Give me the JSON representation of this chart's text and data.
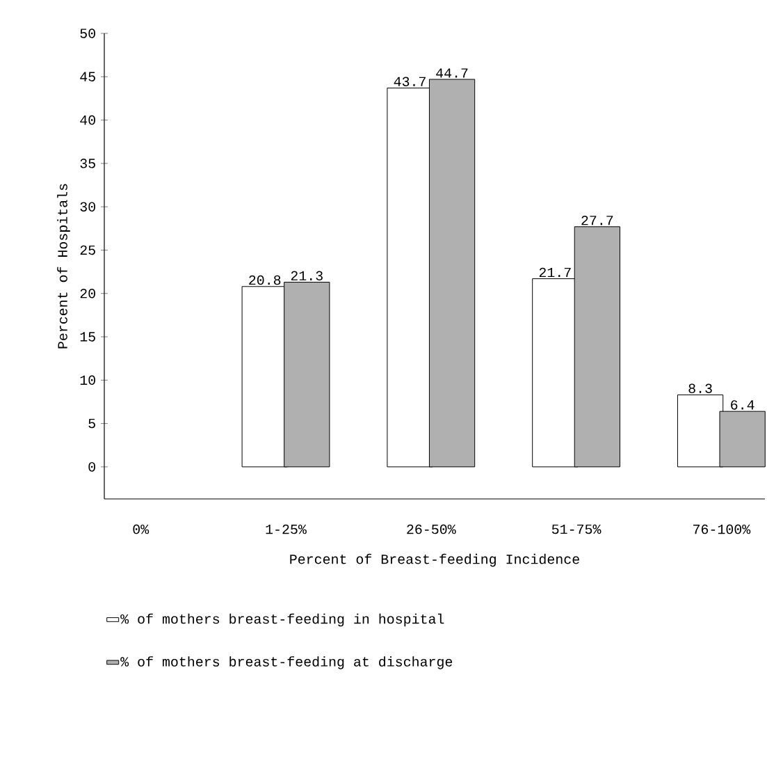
{
  "chart_data": {
    "type": "bar",
    "xlabel": "Percent of Breast-feeding Incidence",
    "ylabel": "Percent of Hospitals",
    "categories": [
      "0%",
      "1-25%",
      "26-50%",
      "51-75%",
      "76-100%"
    ],
    "series": [
      {
        "name": "% of mothers breast-feeding in hospital",
        "color": "#ffffff",
        "values": [
          null,
          20.8,
          43.7,
          21.7,
          8.3
        ]
      },
      {
        "name": "% of mothers breast-feeding at discharge",
        "color": "#b0b0b0",
        "values": [
          null,
          21.3,
          44.7,
          27.7,
          6.4
        ]
      }
    ],
    "ylim": [
      -3.7,
      50
    ],
    "yticks": [
      0,
      5,
      10,
      15,
      20,
      25,
      30,
      35,
      40,
      45,
      50
    ],
    "data_labels": true,
    "grid": false,
    "legend": "bottom"
  }
}
